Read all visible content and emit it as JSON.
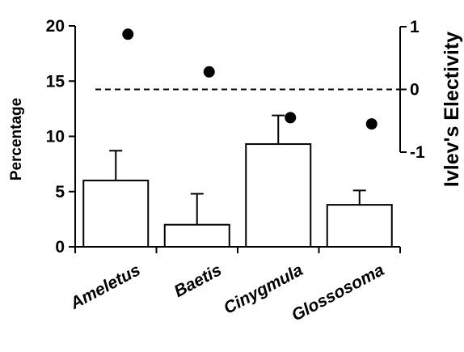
{
  "chart_data": {
    "type": "bar",
    "categories": [
      "Ameletus",
      "Baetis",
      "Cinygmula",
      "Glossosoma"
    ],
    "series": [
      {
        "axis": "left",
        "mark": "bar",
        "values": [
          6.0,
          2.0,
          9.3,
          3.8
        ],
        "error_plus": [
          2.7,
          2.8,
          2.6,
          1.3
        ]
      },
      {
        "axis": "right",
        "mark": "point",
        "values": [
          0.88,
          0.28,
          -0.45,
          -0.55
        ]
      }
    ],
    "ylabel": "Percentage",
    "ylim": [
      0,
      20
    ],
    "yticks": [
      0,
      5,
      10,
      15,
      20
    ],
    "y2label": "Ivlev's Electivity",
    "y2lim": [
      -1,
      1
    ],
    "y2ticks": [
      -1,
      0,
      1
    ],
    "reference_line": {
      "axis": "right",
      "value": 0,
      "style": "dashed"
    },
    "grid": false,
    "legend": "none",
    "colors": {
      "bar_fill": "#ffffff",
      "stroke": "#000000",
      "point": "#000000"
    }
  }
}
